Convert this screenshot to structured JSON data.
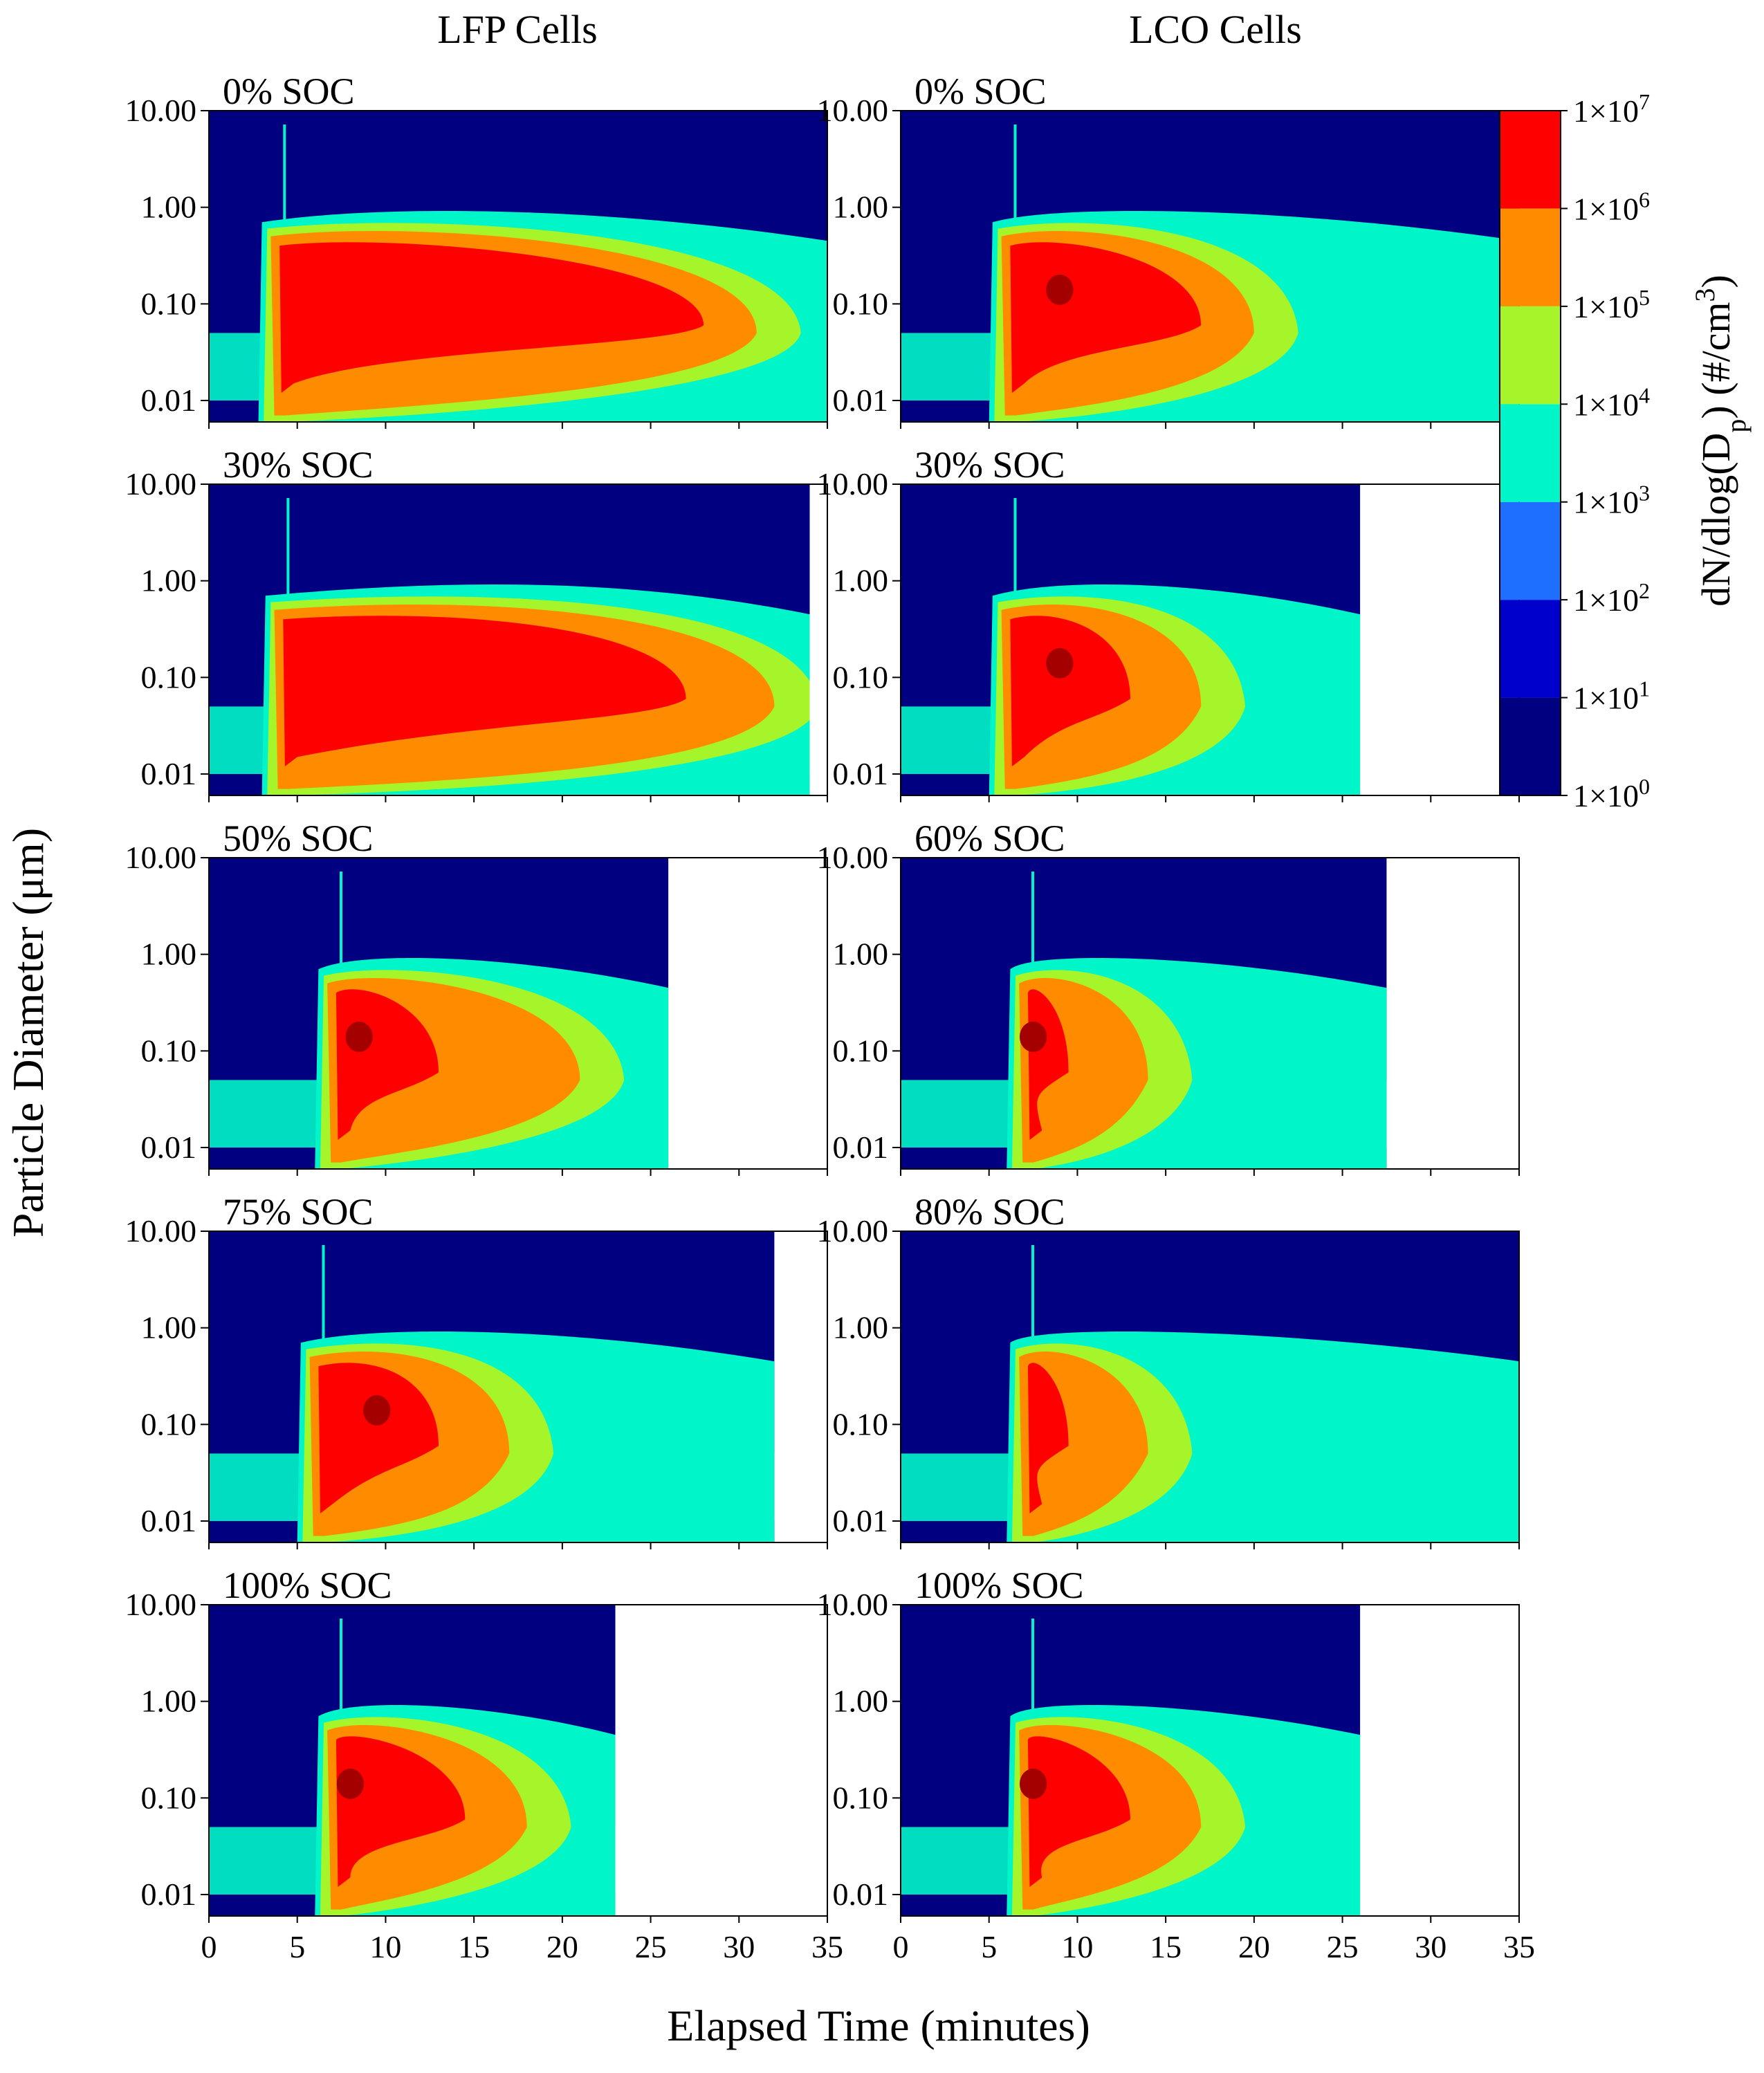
{
  "figure": {
    "column_titles": [
      "LFP Cells",
      "LCO Cells"
    ],
    "xlabel": "Elapsed Time (minutes)",
    "ylabel": "Particle Diameter (μm)",
    "colorbar": {
      "label_main": "dN/dlog(D",
      "label_sub": "p",
      "label_mid": ")  (#/cm",
      "label_sup": "3",
      "label_end": ")",
      "ticks": [
        "1×10",
        "1×10",
        "1×10",
        "1×10",
        "1×10",
        "1×10",
        "1×10",
        "1×10"
      ],
      "exponents": [
        "0",
        "1",
        "2",
        "3",
        "4",
        "5",
        "6",
        "7"
      ],
      "levels": [
        {
          "range": "1e0–1e1",
          "color": "#000080"
        },
        {
          "range": "1e1–1e2",
          "color": "#0000CD"
        },
        {
          "range": "1e2–1e3",
          "color": "#1E6FFF"
        },
        {
          "range": "1e3–1e4",
          "color": "#00F5C8"
        },
        {
          "range": "1e4–1e5",
          "color": "#A6F52A"
        },
        {
          "range": "1e5–1e6",
          "color": "#FF8C00"
        },
        {
          "range": "1e6–1e7",
          "color": "#FF0000"
        },
        {
          "range": ">1e7",
          "color": "#A50000"
        }
      ]
    }
  },
  "chart_data": [
    {
      "type": "heatmap",
      "cell": "LFP",
      "title": "0% SOC",
      "xlim": [
        0,
        35
      ],
      "ylim": [
        0.006,
        10
      ],
      "yscale": "log",
      "data_end_min": 35,
      "onset_min": 3.3,
      "peak_min": 10,
      "red_end_min": 28,
      "orange_end_min": 31,
      "sizes": {
        "red": [
          0.03,
          0.45
        ],
        "orange": [
          0.012,
          0.8
        ]
      },
      "dark_core": false
    },
    {
      "type": "heatmap",
      "cell": "LCO",
      "title": "0% SOC",
      "xlim": [
        0,
        35
      ],
      "ylim": [
        0.006,
        10
      ],
      "yscale": "log",
      "data_end_min": 35,
      "onset_min": 5.5,
      "peak_min": 9,
      "red_end_min": 17,
      "orange_end_min": 20,
      "dark_core": true
    },
    {
      "type": "heatmap",
      "cell": "LFP",
      "title": "30% SOC",
      "xlim": [
        0,
        35
      ],
      "ylim": [
        0.006,
        10
      ],
      "yscale": "log",
      "data_end_min": 34,
      "onset_min": 3.5,
      "peak_min": 15,
      "red_end_min": 27,
      "orange_end_min": 32,
      "dark_core": false
    },
    {
      "type": "heatmap",
      "cell": "LCO",
      "title": "30% SOC",
      "xlim": [
        0,
        35
      ],
      "ylim": [
        0.006,
        10
      ],
      "yscale": "log",
      "data_end_min": 26,
      "onset_min": 5.5,
      "peak_min": 9,
      "red_end_min": 13,
      "orange_end_min": 17,
      "dark_core": true
    },
    {
      "type": "heatmap",
      "cell": "LFP",
      "title": "50% SOC",
      "xlim": [
        0,
        35
      ],
      "ylim": [
        0.006,
        10
      ],
      "yscale": "log",
      "data_end_min": 26,
      "onset_min": 6.5,
      "peak_min": 8.5,
      "red_end_min": 13,
      "orange_end_min": 21,
      "dark_core": true
    },
    {
      "type": "heatmap",
      "cell": "LCO",
      "title": "60% SOC",
      "xlim": [
        0,
        35
      ],
      "ylim": [
        0.006,
        10
      ],
      "yscale": "log",
      "data_end_min": 27.5,
      "onset_min": 6.5,
      "peak_min": 7.5,
      "red_end_min": 9.5,
      "orange_end_min": 14,
      "dark_core": true
    },
    {
      "type": "heatmap",
      "cell": "LFP",
      "title": "75% SOC",
      "xlim": [
        0,
        35
      ],
      "ylim": [
        0.006,
        10
      ],
      "yscale": "log",
      "data_end_min": 32,
      "onset_min": 5.5,
      "peak_min": 9.5,
      "red_end_min": 13,
      "orange_end_min": 17,
      "dark_core": true
    },
    {
      "type": "heatmap",
      "cell": "LCO",
      "title": "80% SOC",
      "xlim": [
        0,
        35
      ],
      "ylim": [
        0.006,
        10
      ],
      "yscale": "log",
      "data_end_min": 35,
      "onset_min": 6.5,
      "peak_min": 7.5,
      "red_end_min": 9.5,
      "orange_end_min": 14,
      "dark_core": false
    },
    {
      "type": "heatmap",
      "cell": "LFP",
      "title": "100% SOC",
      "xlim": [
        0,
        35
      ],
      "ylim": [
        0.006,
        10
      ],
      "yscale": "log",
      "data_end_min": 23,
      "onset_min": 6.5,
      "peak_min": 8,
      "red_end_min": 14.5,
      "orange_end_min": 18,
      "dark_core": true
    },
    {
      "type": "heatmap",
      "cell": "LCO",
      "title": "100% SOC",
      "xlim": [
        0,
        35
      ],
      "ylim": [
        0.006,
        10
      ],
      "yscale": "log",
      "data_end_min": 26,
      "onset_min": 6.5,
      "peak_min": 7.5,
      "red_end_min": 13,
      "orange_end_min": 17,
      "dark_core": true
    }
  ],
  "axes": {
    "xticks": [
      "0",
      "5",
      "10",
      "15",
      "20",
      "25",
      "30",
      "35"
    ],
    "xtick_values": [
      0,
      5,
      10,
      15,
      20,
      25,
      30,
      35
    ],
    "yticks": [
      "10.00",
      "1.00",
      "0.10",
      "0.01"
    ],
    "ytick_values": [
      10,
      1,
      0.1,
      0.01
    ]
  }
}
